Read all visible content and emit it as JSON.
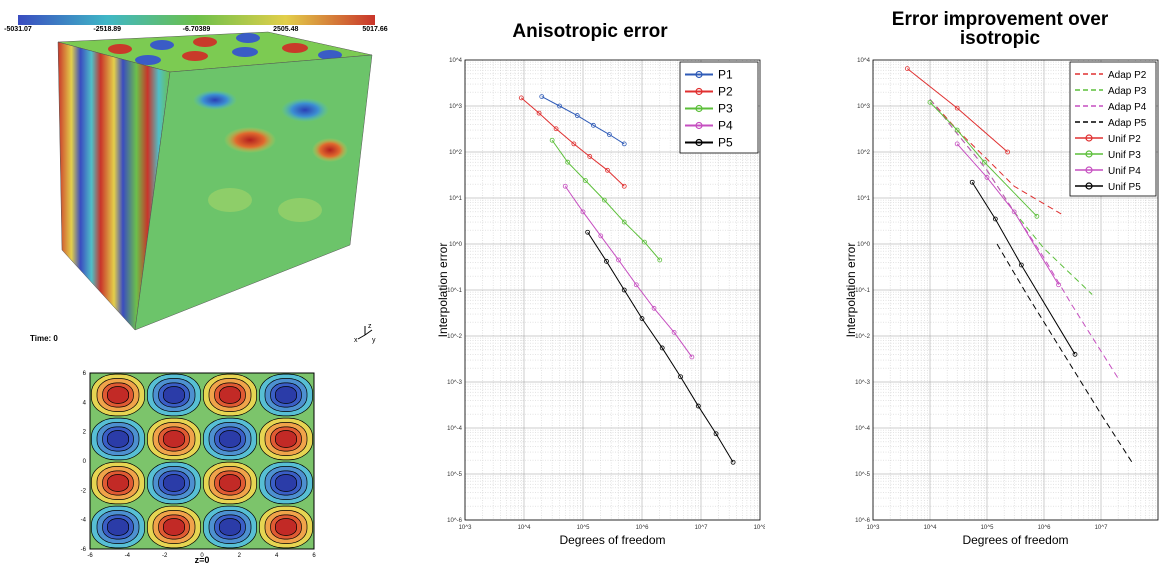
{
  "colorbar": {
    "ticks": [
      "-5031.07",
      "-2518.89",
      "-6.70389",
      "2505.48",
      "5017.66"
    ],
    "min": -5031.07,
    "max": 5017.66
  },
  "cube_view": {
    "time_label": "Time: 0",
    "axis_labels": {
      "x": "x",
      "y": "y",
      "z": "z"
    }
  },
  "contour_plot": {
    "xlabel": "z=0",
    "x_ticks": [
      "-6",
      "-4",
      "-2",
      "0",
      "2",
      "4",
      "6"
    ],
    "y_ticks": [
      "-6",
      "-4",
      "-2",
      "0",
      "2",
      "4",
      "6"
    ]
  },
  "chart_data": [
    {
      "type": "line",
      "title": "Anisotropic error",
      "xlabel": "Degrees of freedom",
      "ylabel": "Interpolation error",
      "xscale": "log",
      "yscale": "log",
      "xlim": [
        1000,
        100000000
      ],
      "ylim": [
        1e-06,
        10000
      ],
      "x_ticks": [
        "10^3",
        "10^4",
        "10^5",
        "10^6",
        "10^7",
        "10^8"
      ],
      "y_ticks": [
        "10^-6",
        "10^-5",
        "10^-4",
        "10^-3",
        "10^-2",
        "10^-1",
        "10^0",
        "10^1",
        "10^2",
        "10^3",
        "10^4"
      ],
      "grid": true,
      "legend": "top-right",
      "series": [
        {
          "name": "P1",
          "color": "#2f5bb7",
          "x": [
            20000,
            40000,
            80000,
            150000,
            280000,
            500000
          ],
          "y": [
            1600,
            1000,
            620,
            380,
            240,
            150
          ]
        },
        {
          "name": "P2",
          "color": "#e03030",
          "x": [
            9000,
            18000,
            35000,
            70000,
            130000,
            260000,
            500000
          ],
          "y": [
            1500,
            700,
            320,
            150,
            80,
            40,
            18
          ]
        },
        {
          "name": "P3",
          "color": "#5cbf3a",
          "x": [
            30000,
            55000,
            110000,
            230000,
            500000,
            1100000,
            2000000
          ],
          "y": [
            180,
            60,
            24,
            9,
            3,
            1.1,
            0.45
          ]
        },
        {
          "name": "P4",
          "color": "#c64fc0",
          "x": [
            50000,
            100000,
            200000,
            400000,
            800000,
            1600000,
            3500000,
            7000000
          ],
          "y": [
            18,
            5,
            1.5,
            0.45,
            0.13,
            0.04,
            0.012,
            0.0035
          ]
        },
        {
          "name": "P5",
          "color": "#000000",
          "x": [
            120000,
            250000,
            500000,
            1000000,
            2200000,
            4500000,
            9000000,
            18000000,
            35000000
          ],
          "y": [
            1.8,
            0.42,
            0.1,
            0.024,
            0.0055,
            0.0013,
            0.0003,
            7.5e-05,
            1.8e-05
          ]
        }
      ]
    },
    {
      "type": "line",
      "title": "Error improvement over isotropic",
      "xlabel": "Degrees of freedom",
      "ylabel": "Interpolation error",
      "xscale": "log",
      "yscale": "log",
      "xlim": [
        1000,
        100000000
      ],
      "ylim": [
        1e-06,
        10000
      ],
      "x_ticks": [
        "10^3",
        "10^4",
        "10^5",
        "10^6",
        "10^7"
      ],
      "y_ticks": [
        "10^-6",
        "10^-5",
        "10^-4",
        "10^-3",
        "10^-2",
        "10^-1",
        "10^0",
        "10^1",
        "10^2",
        "10^3",
        "10^4"
      ],
      "grid": true,
      "legend": "top-right",
      "series": [
        {
          "name": "Adap P2",
          "color": "#e03030",
          "dashed": true,
          "x": [
            10000,
            30000,
            100000,
            300000,
            2000000
          ],
          "y": [
            1400,
            300,
            70,
            18,
            4.5
          ]
        },
        {
          "name": "Adap P3",
          "color": "#5cbf3a",
          "dashed": true,
          "x": [
            10000,
            30000,
            100000,
            300000,
            1000000,
            7000000
          ],
          "y": [
            1400,
            250,
            40,
            5,
            0.8,
            0.08
          ]
        },
        {
          "name": "Adap P4",
          "color": "#c64fc0",
          "dashed": true,
          "x": [
            10000,
            30000,
            100000,
            300000,
            1000000,
            3000000,
            20000000
          ],
          "y": [
            1400,
            250,
            40,
            5,
            0.5,
            0.05,
            0.0012
          ]
        },
        {
          "name": "Adap P5",
          "color": "#000000",
          "dashed": true,
          "x": [
            150000,
            500000,
            2000000,
            10000000,
            35000000
          ],
          "y": [
            1.0,
            0.08,
            0.005,
            0.0002,
            1.8e-05
          ]
        },
        {
          "name": "Unif P2",
          "color": "#e03030",
          "dashed": false,
          "x": [
            4000,
            30000,
            230000
          ],
          "y": [
            6500,
            900,
            100
          ]
        },
        {
          "name": "Unif P3",
          "color": "#5cbf3a",
          "dashed": false,
          "x": [
            10000,
            30000,
            90000,
            750000
          ],
          "y": [
            1200,
            300,
            60,
            4
          ]
        },
        {
          "name": "Unif P4",
          "color": "#c64fc0",
          "dashed": false,
          "x": [
            30000,
            100000,
            300000,
            1800000
          ],
          "y": [
            150,
            28,
            5,
            0.13
          ]
        },
        {
          "name": "Unif P5",
          "color": "#000000",
          "dashed": false,
          "x": [
            55000,
            140000,
            400000,
            3500000
          ],
          "y": [
            22,
            3.5,
            0.35,
            0.004
          ]
        }
      ]
    }
  ]
}
